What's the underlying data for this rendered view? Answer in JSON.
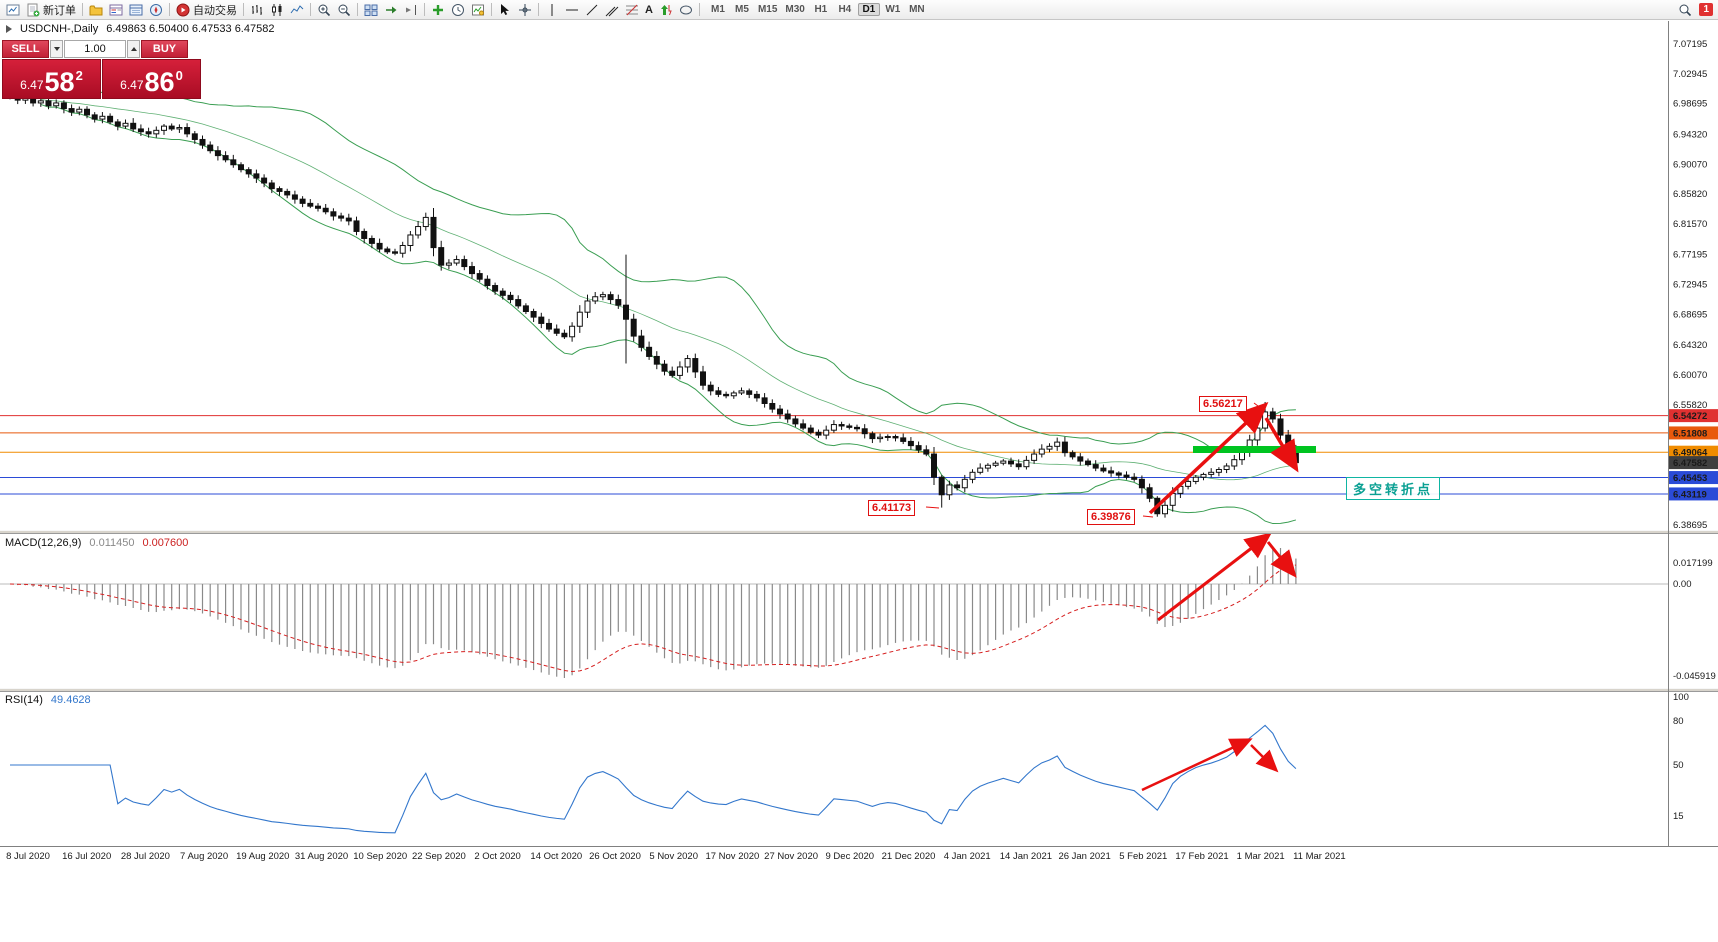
{
  "toolbar": {
    "new_order": "新订单",
    "autotrading": "自动交易",
    "timeframes": [
      "M1",
      "M5",
      "M15",
      "M30",
      "H1",
      "H4",
      "D1",
      "W1",
      "MN"
    ],
    "active_timeframe": "D1",
    "badge": "1"
  },
  "icons": {
    "text_tool": "A"
  },
  "symbol_header": {
    "symbol": "USDCNH-,Daily",
    "ohlc": "6.49863 6.50400 6.47533 6.47582"
  },
  "trade_panel": {
    "sell": "SELL",
    "buy": "BUY",
    "volume": "1.00",
    "bid_small": "6.47",
    "bid_big": "58",
    "bid_sup": "2",
    "ask_small": "6.47",
    "ask_big": "86",
    "ask_sup": "0"
  },
  "price_scale": {
    "ticks": [
      "7.07195",
      "7.02945",
      "6.98695",
      "6.94320",
      "6.90070",
      "6.85820",
      "6.81570",
      "6.77195",
      "6.72945",
      "6.68695",
      "6.64320",
      "6.60070",
      "6.55820",
      "6.38695"
    ],
    "tags": [
      {
        "label": "6.54272",
        "color": "#e03131",
        "line": true
      },
      {
        "label": "6.51808",
        "color": "#e8590c",
        "line": true
      },
      {
        "label": "6.49064",
        "color": "#f08c00",
        "line": true
      },
      {
        "label": "6.47582",
        "color": "#3f3f3f",
        "line": false
      },
      {
        "label": "6.45453",
        "color": "#2b4bd7",
        "line": true
      },
      {
        "label": "6.43119",
        "color": "#2b4bd7",
        "line": true
      }
    ]
  },
  "macd_panel": {
    "name": "MACD(12,26,9)",
    "main_value": "0.011450",
    "signal_value": "0.007600",
    "scale_ticks": [
      "0.017199",
      "0.00",
      "-0.045919"
    ]
  },
  "rsi_panel": {
    "name": "RSI(14)",
    "value": "49.4628",
    "scale_ticks": [
      "100",
      "80",
      "50",
      "15"
    ]
  },
  "date_axis": [
    "8 Jul 2020",
    "16 Jul 2020",
    "28 Jul 2020",
    "7 Aug 2020",
    "19 Aug 2020",
    "31 Aug 2020",
    "10 Sep 2020",
    "22 Sep 2020",
    "2 Oct 2020",
    "14 Oct 2020",
    "26 Oct 2020",
    "5 Nov 2020",
    "17 Nov 2020",
    "27 Nov 2020",
    "9 Dec 2020",
    "21 Dec 2020",
    "4 Jan 2021",
    "14 Jan 2021",
    "26 Jan 2021",
    "5 Feb 2021",
    "17 Feb 2021",
    "1 Mar 2021",
    "11 Mar 2021"
  ],
  "annotations": {
    "high_label": "6.56217",
    "low1_label": "6.41173",
    "low2_label": "6.39876",
    "note": "多空转折点",
    "trend_color": "#e81010",
    "support_bar_color": "#00c420"
  },
  "chart_data": {
    "type": "candlestick",
    "title": "USDCNH- Daily",
    "overlays": [
      "Bollinger Bands (20,2)"
    ],
    "indicators": [
      "MACD(12,26,9)",
      "RSI(14)"
    ],
    "price_range": [
      6.38695,
      7.07195
    ],
    "dates_span": [
      "8 Jul 2020",
      "11 Mar 2021"
    ],
    "open_first": 7.002,
    "closes": [
      6.998,
      6.992,
      6.996,
      6.988,
      6.991,
      6.984,
      6.988,
      6.98,
      6.975,
      6.979,
      6.971,
      6.965,
      6.969,
      6.961,
      6.955,
      6.959,
      6.951,
      6.947,
      6.944,
      6.949,
      6.955,
      6.951,
      6.953,
      6.944,
      6.936,
      6.928,
      6.92,
      6.913,
      6.907,
      6.9,
      6.893,
      6.887,
      6.881,
      6.874,
      6.866,
      6.862,
      6.857,
      6.851,
      6.845,
      6.841,
      6.838,
      6.833,
      6.827,
      6.824,
      6.82,
      6.805,
      6.795,
      6.788,
      6.78,
      6.776,
      6.774,
      6.785,
      6.8,
      6.812,
      6.825,
      6.782,
      6.757,
      6.76,
      6.765,
      6.755,
      6.745,
      6.737,
      6.728,
      6.72,
      6.714,
      6.708,
      6.699,
      6.691,
      6.683,
      6.674,
      6.666,
      6.66,
      6.655,
      6.67,
      6.69,
      6.706,
      6.712,
      6.715,
      6.708,
      6.7,
      6.68,
      6.656,
      6.64,
      6.627,
      6.616,
      6.606,
      6.6,
      6.612,
      6.624,
      6.605,
      6.586,
      6.578,
      6.573,
      6.571,
      6.575,
      6.578,
      6.573,
      6.568,
      6.56,
      6.552,
      6.545,
      6.538,
      6.531,
      6.525,
      6.519,
      6.515,
      6.522,
      6.53,
      6.528,
      6.526,
      6.524,
      6.517,
      6.51,
      6.512,
      6.513,
      6.511,
      6.506,
      6.5,
      6.494,
      6.488,
      6.455,
      6.43,
      6.444,
      6.44,
      6.452,
      6.462,
      6.468,
      6.472,
      6.475,
      6.478,
      6.474,
      6.47,
      6.479,
      6.488,
      6.495,
      6.499,
      6.505,
      6.49,
      6.484,
      6.478,
      6.473,
      6.468,
      6.464,
      6.461,
      6.458,
      6.455,
      6.452,
      6.44,
      6.425,
      6.403,
      6.415,
      6.432,
      6.442,
      6.449,
      6.455,
      6.459,
      6.462,
      6.466,
      6.471,
      6.48,
      6.492,
      6.508,
      6.525,
      6.548,
      6.538,
      6.515,
      6.492,
      6.47582
    ],
    "wick_overrides": {
      "80": [
        6.772,
        6.617
      ],
      "121": [
        6.458,
        6.41173
      ],
      "149": [
        6.428,
        6.39876
      ],
      "163": [
        6.56217,
        6.52
      ]
    },
    "key_points": {
      "swing_high": 6.56217,
      "december_low": 6.41173,
      "february_low": 6.39876,
      "last_close": 6.47582
    }
  }
}
